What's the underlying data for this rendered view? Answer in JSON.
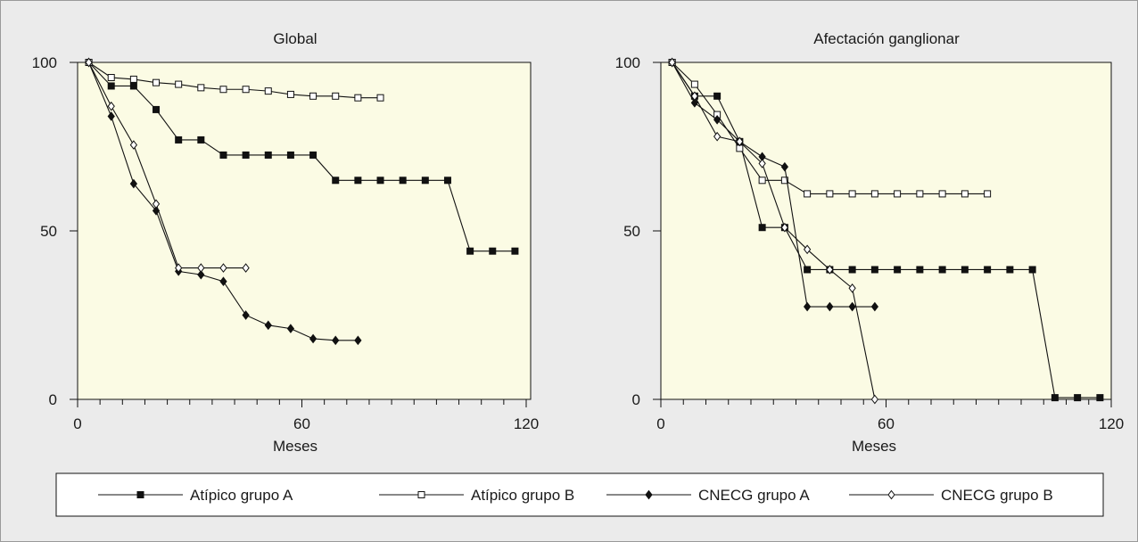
{
  "colors": {
    "outer_background": "#ebebeb",
    "plot_background": "#fbfbe4",
    "line": "#111111",
    "legend_background": "#ffffff"
  },
  "x_axis_label": "Meses",
  "legend": [
    {
      "label": "Atípico grupo A",
      "marker": "square-filled"
    },
    {
      "label": "Atípico grupo B",
      "marker": "square-open"
    },
    {
      "label": "CNECG grupo A",
      "marker": "diamond-filled"
    },
    {
      "label": "CNECG grupo B",
      "marker": "diamond-open"
    }
  ],
  "chart_data": [
    {
      "type": "line",
      "title": "Global",
      "xlabel": "Meses",
      "ylabel": "",
      "xlim": [
        0,
        120
      ],
      "ylim": [
        0,
        100
      ],
      "xticks": [
        0,
        60,
        120
      ],
      "yticks": [
        0,
        50,
        100
      ],
      "series": [
        {
          "name": "Atípico grupo A",
          "marker": "square-filled",
          "x": [
            3,
            9,
            15,
            21,
            27,
            33,
            39,
            45,
            51,
            57,
            63,
            69,
            75,
            81,
            87,
            93,
            99,
            105,
            111,
            117
          ],
          "y": [
            100,
            93,
            93,
            86,
            77,
            77,
            72.5,
            72.5,
            72.5,
            72.5,
            72.5,
            65,
            65,
            65,
            65,
            65,
            65,
            44,
            44,
            44
          ]
        },
        {
          "name": "Atípico grupo B",
          "marker": "square-open",
          "x": [
            3,
            9,
            15,
            21,
            27,
            33,
            39,
            45,
            51,
            57,
            63,
            69,
            75,
            81
          ],
          "y": [
            100,
            95.5,
            95,
            94,
            93.5,
            92.5,
            92,
            92,
            91.5,
            90.5,
            90,
            90,
            89.5,
            89.5
          ]
        },
        {
          "name": "CNECG grupo A",
          "marker": "diamond-filled",
          "x": [
            3,
            9,
            15,
            21,
            27,
            33,
            39,
            45,
            51,
            57,
            63,
            69,
            75
          ],
          "y": [
            100,
            84,
            64,
            56,
            38,
            37,
            35,
            25,
            22,
            21,
            18,
            17.5,
            17.5
          ]
        },
        {
          "name": "CNECG grupo B",
          "marker": "diamond-open",
          "x": [
            3,
            9,
            15,
            21,
            27,
            33,
            39,
            45
          ],
          "y": [
            100,
            87,
            75.5,
            58,
            39,
            39,
            39,
            39
          ]
        }
      ]
    },
    {
      "type": "line",
      "title": "Afectación ganglionar",
      "xlabel": "Meses",
      "ylabel": "",
      "xlim": [
        0,
        120
      ],
      "ylim": [
        0,
        100
      ],
      "xticks": [
        0,
        60,
        120
      ],
      "yticks": [
        0,
        50,
        100
      ],
      "series": [
        {
          "name": "Atípico grupo A",
          "marker": "square-filled",
          "x": [
            3,
            9,
            15,
            21,
            27,
            33,
            39,
            45,
            51,
            57,
            63,
            69,
            75,
            81,
            87,
            93,
            99,
            105,
            111,
            117
          ],
          "y": [
            100,
            90,
            90,
            76.5,
            51,
            51,
            38.5,
            38.5,
            38.5,
            38.5,
            38.5,
            38.5,
            38.5,
            38.5,
            38.5,
            38.5,
            38.5,
            0.5,
            0.5,
            0.5
          ]
        },
        {
          "name": "Atípico grupo B",
          "marker": "square-open",
          "x": [
            3,
            9,
            15,
            21,
            27,
            33,
            39,
            45,
            51,
            57,
            63,
            69,
            75,
            81,
            87
          ],
          "y": [
            100,
            93.5,
            84.5,
            74.5,
            65,
            65,
            61,
            61,
            61,
            61,
            61,
            61,
            61,
            61,
            61
          ]
        },
        {
          "name": "CNECG grupo A",
          "marker": "diamond-filled",
          "x": [
            3,
            9,
            15,
            21,
            27,
            33,
            39,
            45,
            51,
            57
          ],
          "y": [
            100,
            88,
            83,
            76.5,
            72,
            69,
            27.5,
            27.5,
            27.5,
            27.5
          ]
        },
        {
          "name": "CNECG grupo B",
          "marker": "diamond-open",
          "x": [
            3,
            9,
            15,
            21,
            27,
            33,
            39,
            45,
            51,
            57
          ],
          "y": [
            100,
            90,
            78,
            76.5,
            70,
            51,
            44.5,
            38.5,
            33,
            0
          ]
        }
      ]
    }
  ]
}
